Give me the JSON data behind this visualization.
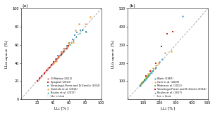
{
  "panel_a": {
    "title": "(a)",
    "xlim": [
      0,
      100
    ],
    "ylim": [
      0,
      100
    ],
    "xticks": [
      20,
      40,
      60,
      80,
      100
    ],
    "yticks": [
      0,
      20,
      40,
      60,
      80,
      100
    ],
    "line_label": "LLc = LLca",
    "series": [
      {
        "label": "Di Matteo (2012)",
        "color": "#d4726e",
        "marker": "o",
        "ms": 3,
        "x": [
          20,
          22,
          24,
          26,
          28,
          30,
          32,
          33,
          34,
          35,
          36,
          37,
          38,
          39,
          40,
          41,
          42,
          43,
          44,
          45,
          46,
          47,
          48,
          49,
          50,
          51,
          52,
          54,
          56,
          58
        ],
        "y": [
          20,
          22,
          24,
          26,
          28,
          30,
          32,
          33,
          34,
          35,
          36,
          37,
          38,
          39,
          40,
          41,
          42,
          43,
          44,
          45,
          46,
          47,
          48,
          49,
          50,
          51,
          52,
          54,
          56,
          58
        ]
      },
      {
        "label": "Spagnoli (2013)",
        "color": "#cc2222",
        "marker": "s",
        "ms": 3,
        "x": [
          20,
          23,
          26,
          29,
          32,
          35,
          38,
          41,
          44,
          47,
          50,
          53,
          56,
          59
        ],
        "y": [
          20,
          23,
          26,
          29,
          32,
          35,
          38,
          41,
          44,
          47,
          50,
          53,
          56,
          59
        ]
      },
      {
        "label": "Verastegui-Flores and Di Emidio (2014)",
        "color": "#5599cc",
        "marker": "s",
        "ms": 3,
        "x": [
          43,
          46,
          50,
          54,
          57,
          60,
          64,
          67,
          70,
          74,
          77,
          81
        ],
        "y": [
          44,
          48,
          52,
          56,
          59,
          62,
          66,
          71,
          74,
          76,
          76,
          75
        ]
      },
      {
        "label": "Quintela et al. (2014)",
        "color": "#e8a030",
        "marker": "o",
        "ms": 3,
        "x": [
          41,
          44,
          47,
          50,
          53,
          57,
          59,
          63,
          65,
          68,
          72,
          80,
          86
        ],
        "y": [
          40,
          42,
          47,
          52,
          56,
          58,
          62,
          62,
          63,
          76,
          83,
          83,
          91
        ]
      },
      {
        "label": "Boulos et al. (2017)",
        "color": "#229988",
        "marker": "^",
        "ms": 3,
        "x": [
          49,
          53,
          57,
          61,
          65,
          69,
          73,
          77,
          81
        ],
        "y": [
          49,
          53,
          57,
          61,
          65,
          69,
          73,
          77,
          75
        ]
      }
    ]
  },
  "panel_b": {
    "title": "(b)",
    "xlim": [
      0,
      500
    ],
    "ylim": [
      0,
      500
    ],
    "xticks": [
      100,
      200,
      300,
      400,
      500
    ],
    "yticks": [
      100,
      200,
      300,
      400,
      500
    ],
    "line_label": "LLc = LLca",
    "series": [
      {
        "label": "Wasti (1987)",
        "color": "#44aacc",
        "marker": "o",
        "ms": 3,
        "x": [
          75,
          80,
          85,
          90,
          95,
          100,
          105,
          110,
          115,
          120,
          125,
          130,
          140,
          155,
          175,
          200,
          215,
          345
        ],
        "y": [
          75,
          80,
          85,
          90,
          95,
          100,
          105,
          110,
          115,
          120,
          125,
          130,
          145,
          155,
          175,
          205,
          220,
          460
        ]
      },
      {
        "label": "Ozer et al. (2009)",
        "color": "#e8a030",
        "marker": "o",
        "ms": 3,
        "x": [
          78,
          85,
          95,
          105,
          115,
          130,
          145,
          160,
          175,
          195,
          235,
          275
        ],
        "y": [
          78,
          85,
          95,
          110,
          125,
          140,
          155,
          170,
          185,
          200,
          255,
          265
        ]
      },
      {
        "label": "Mishra et al. (2012)",
        "color": "#88bb33",
        "marker": "s",
        "ms": 3,
        "x": [
          88,
          98,
          108,
          118,
          128,
          138
        ],
        "y": [
          88,
          98,
          108,
          118,
          128,
          138
        ]
      },
      {
        "label": "Verastegui-Flores and Di Emidio (2014)",
        "color": "#cc2222",
        "marker": "s",
        "ms": 3,
        "x": [
          115,
          140,
          175,
          210,
          245,
          280
        ],
        "y": [
          130,
          155,
          200,
          290,
          360,
          375
        ]
      },
      {
        "label": "Boulos et al. (2017)",
        "color": "#229988",
        "marker": "^",
        "ms": 3,
        "x": [
          78,
          88,
          98,
          108,
          118,
          128,
          138,
          148,
          160,
          170
        ],
        "y": [
          78,
          88,
          98,
          108,
          118,
          128,
          138,
          148,
          160,
          170
        ]
      }
    ]
  },
  "line_color": "#aaaaaa",
  "bg": "#ffffff",
  "ylabel_a": "LL$_{Casagrande}$ (%)",
  "ylabel_b": "LL$_{Casagrande}$ (%)",
  "xlabel": "LL$_C$ [%]",
  "legend_a": [
    "Di Matteo (2012)",
    "Spagnoli (2013)",
    "Verastegui-Flores and Di Emidio (2014)",
    "Quintela et al. (2014)",
    "Boulos et al. (2017)",
    "LLc = LLca"
  ],
  "legend_b": [
    "Wasti (1987)",
    "Ozer et al. (2009)",
    "Mishra et al. (2012)",
    "Verastegui-Flores and Di Emidio (2014)",
    "Boulos et al. (2017)",
    "LLc = LLca"
  ]
}
